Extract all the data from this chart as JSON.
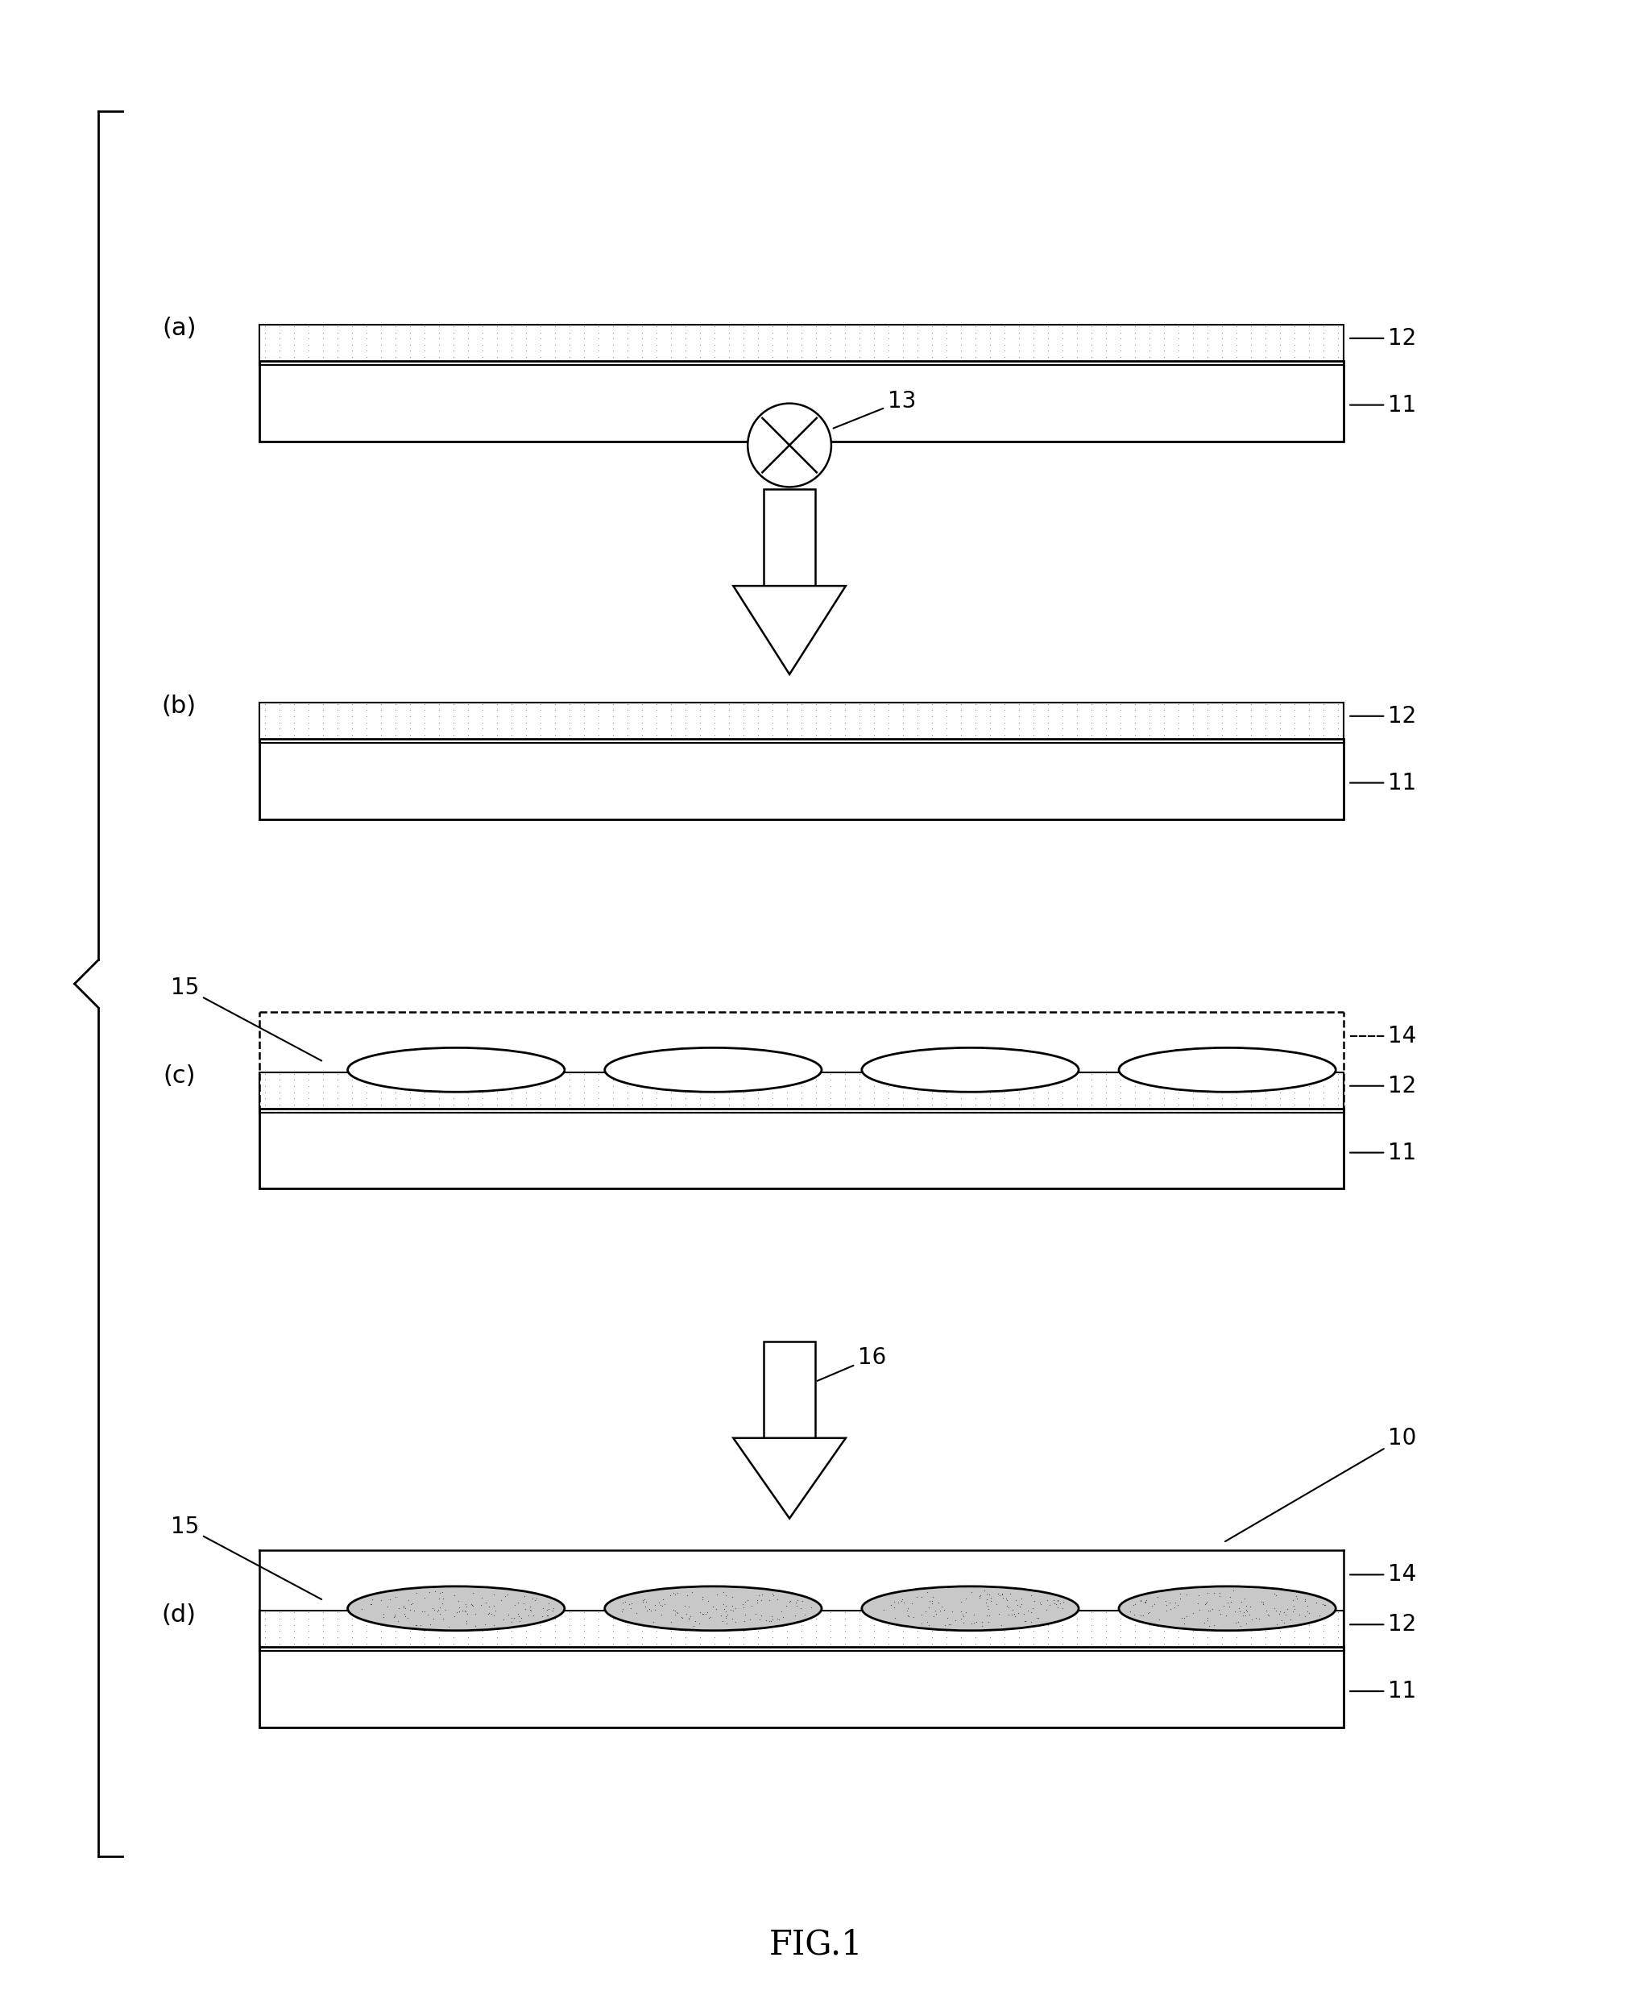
{
  "bg_color": "#ffffff",
  "fig_width": 20.26,
  "fig_height": 24.86,
  "title": "FIG.1",
  "panels": [
    "(a)",
    "(b)",
    "(c)",
    "(d)"
  ],
  "labels": {
    "a": {
      "label11": "11",
      "label12": "12"
    },
    "b": {
      "label11": "11",
      "label12": "12",
      "label13": "13"
    },
    "c": {
      "label11": "11",
      "label12": "12",
      "label14": "14",
      "label15": "15"
    },
    "d": {
      "label11": "11",
      "label12": "12",
      "label14": "14",
      "label15": "15",
      "label16": "16",
      "label10": "10"
    }
  }
}
